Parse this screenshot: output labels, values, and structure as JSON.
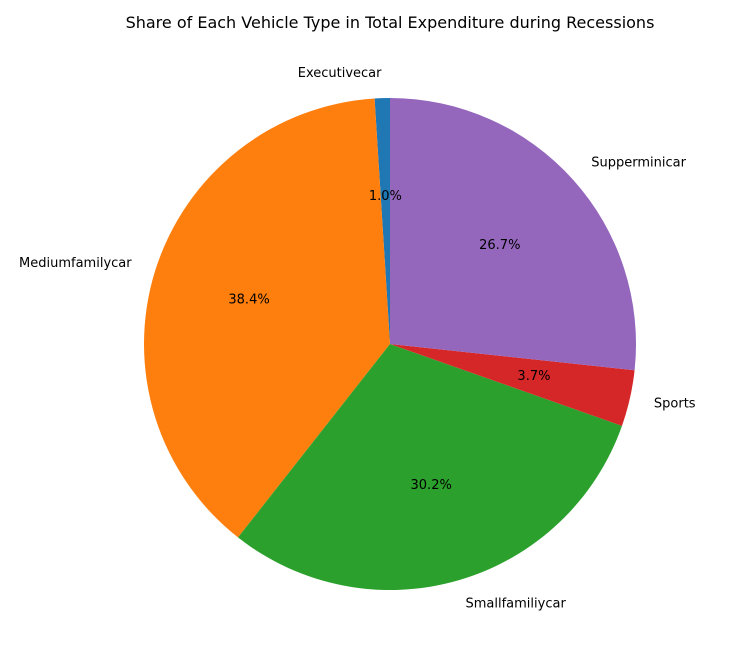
{
  "chart_data": {
    "type": "pie",
    "title": "Share of Each Vehicle Type in Total Expenditure during Recessions",
    "start_angle_deg": 90,
    "direction": "counterclockwise",
    "legend": "none",
    "slices": [
      {
        "label": "Executivecar",
        "value": 1.0,
        "pct_text": "1.0%",
        "color": "#1f77b4"
      },
      {
        "label": "Mediumfamilycar",
        "value": 38.4,
        "pct_text": "38.4%",
        "color": "#ff7f0e"
      },
      {
        "label": "Smallfamiliycar",
        "value": 30.2,
        "pct_text": "30.2%",
        "color": "#2ca02c"
      },
      {
        "label": "Sports",
        "value": 3.7,
        "pct_text": "3.7%",
        "color": "#d62728"
      },
      {
        "label": "Supperminicar",
        "value": 26.7,
        "pct_text": "26.7%",
        "color": "#9467bd"
      }
    ]
  }
}
